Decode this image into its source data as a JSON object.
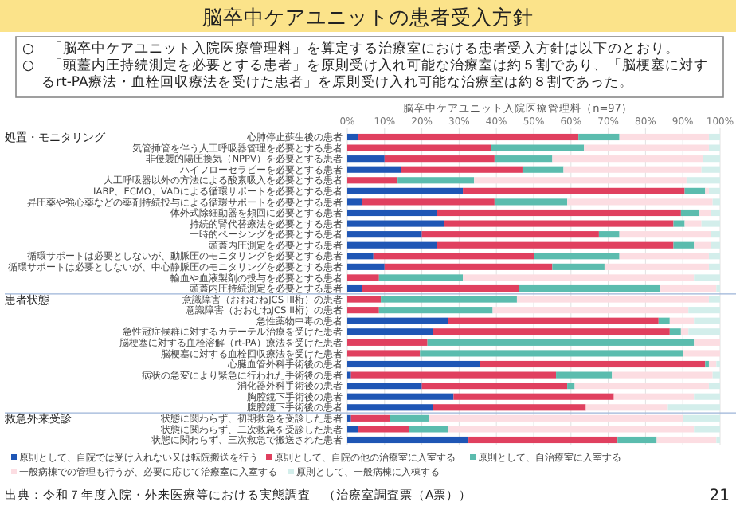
{
  "chart_data": {
    "type": "bar",
    "orientation": "horizontal",
    "stacked": true,
    "title": "脳卒中ケアユニットの患者受入方針",
    "subtitle": "脳卒中ケアユニット入院医療管理料（n=97）",
    "categories": [
      "心肺停止蘇生後の患者",
      "気管挿管を伴う人工呼吸器管理を必要とする患者",
      "非侵襲的陽圧換気（NPPV）を必要とする患者",
      "ハイフローセラピーを必要とする患者",
      "人工呼吸器以外の方法による酸素吸入を必要とする患者",
      "IABP、ECMO、VADによる循環サポートを必要とする患者",
      "昇圧薬や強心薬などの薬剤持続投与による循環サポートを必要とする患者",
      "体外式除細動器を頻回に必要とする患者",
      "持続的腎代替療法を必要とする患者",
      "一時的ペーシングを必要とする患者",
      "頭蓋内圧測定を必要とする患者",
      "循環サポートは必要としないが、動脈圧のモニタリングを必要とする患者",
      "循環サポートは必要としないが、中心静脈圧のモニタリングを必要とする患者",
      "輸血や血液製剤の投与を必要とする患者",
      "頭蓋内圧持続測定を必要とする患者",
      "意識障害（おおむねJCS III桁）の患者",
      "意識障害（おおむねJCS II桁）の患者",
      "急性薬物中毒の患者",
      "急性冠症候群に対するカテーテル治療を受けた患者",
      "脳梗塞に対する血栓溶解（rt-PA）療法を受けた患者",
      "脳梗塞に対する血栓回収療法を受けた患者",
      "心臓血管外科手術後の患者",
      "病状の急変により緊急に行われた手術後の患者",
      "消化器外科手術後の患者",
      "胸腔鏡下手術後の患者",
      "腹腔鏡下手術後の患者",
      "状態に関わらず、初期救急を受診した患者",
      "状態に関わらず、二次救急を受診した患者",
      "状態に関わらず、三次救急で搬送された患者"
    ],
    "series": [
      {
        "name": "原則として、自院では受け入れない又は転院搬送を行う",
        "color": "#1f56b5",
        "values": [
          3,
          0,
          10,
          14.5,
          0,
          31,
          4,
          24,
          26,
          20,
          24,
          7,
          10,
          0,
          4,
          0,
          0,
          27,
          23,
          0,
          0,
          35.5,
          1,
          20,
          28.5,
          23,
          1,
          3,
          32.5
        ]
      },
      {
        "name": "原則として、自院の他の治療室に入室する",
        "color": "#e0405f",
        "values": [
          59,
          38.5,
          29.5,
          32.5,
          13.5,
          59.5,
          35.5,
          65.5,
          61.5,
          47.5,
          63.5,
          43,
          45,
          8.5,
          42,
          9,
          8.5,
          56.5,
          63.5,
          21.5,
          19.5,
          60.5,
          55,
          39,
          43,
          41,
          10.5,
          13.5,
          40
        ]
      },
      {
        "name": "原則として、自治療室に入室する",
        "color": "#5bbcae",
        "values": [
          11,
          25,
          15.5,
          11,
          20.5,
          5.5,
          19.5,
          5,
          3,
          5.5,
          5.5,
          23,
          14,
          22.5,
          38,
          36.5,
          30.5,
          3,
          3,
          71.5,
          70.5,
          1,
          15,
          2,
          0,
          0,
          10.5,
          10.5,
          10.5
        ]
      },
      {
        "name": "一般病棟での管理も行うが、必要に応じて治療室に入室する",
        "color": "#fcdde2",
        "values": [
          24,
          33.5,
          40.5,
          37,
          57,
          1,
          39,
          3,
          4.5,
          24.5,
          4.5,
          24,
          28,
          62,
          15,
          51.5,
          52.5,
          6.5,
          2,
          7,
          10,
          2,
          27,
          36,
          21.5,
          22,
          68,
          66,
          16
        ]
      },
      {
        "name": "原則として、一般病棟に入棟する",
        "color": "#d3eeeb",
        "values": [
          3,
          3,
          4.5,
          5,
          9,
          3,
          2,
          2.5,
          5,
          2.5,
          2.5,
          3,
          3,
          7,
          1,
          3,
          8.5,
          7,
          8.5,
          0,
          0,
          1,
          2,
          3,
          7,
          14,
          10,
          7,
          1
        ]
      }
    ],
    "xlim": [
      0,
      100
    ],
    "xticks": [
      {
        "value": 0,
        "label": "0%"
      },
      {
        "value": 10,
        "label": "10%"
      },
      {
        "value": 20,
        "label": "20%"
      },
      {
        "value": 30,
        "label": "30%"
      },
      {
        "value": 40,
        "label": "40%"
      },
      {
        "value": 50,
        "label": "50%"
      },
      {
        "value": 60,
        "label": "60%"
      },
      {
        "value": 70,
        "label": "70%"
      },
      {
        "value": 80,
        "label": "80%"
      },
      {
        "value": 90,
        "label": "90%"
      },
      {
        "value": 100,
        "label": "100%"
      }
    ],
    "grid": "x",
    "legend": "bottom",
    "annotations": [
      "○　「脳卒中ケアユニット入院医療管理料」を算定する治療室における患者受入方針は以下のとおり。",
      "○　「頭蓋内圧持続測定を必要とする患者」を原則受け入れ可能な治療室は約５割であり、「脳梗塞に対するrt-PA療法・血栓回収療法を受けた患者」を原則受け入れ可能な治療室は約８割であった。",
      "処置・モニタリング",
      "患者状態",
      "救急外来受診",
      "出典：令和７年度入院・外来医療等における実態調査　（治療室調査票（A票））",
      "21"
    ]
  }
}
